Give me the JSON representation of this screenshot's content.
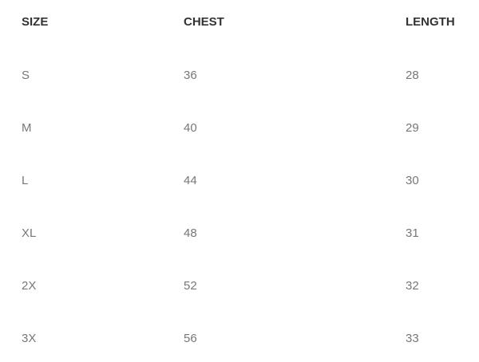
{
  "table": {
    "headers": [
      "SIZE",
      "CHEST",
      "LENGTH"
    ],
    "rows": [
      [
        "S",
        "36",
        "28"
      ],
      [
        "M",
        "40",
        "29"
      ],
      [
        "L",
        "44",
        "30"
      ],
      [
        "XL",
        "48",
        "31"
      ],
      [
        "2X",
        "52",
        "32"
      ],
      [
        "3X",
        "56",
        "33"
      ]
    ]
  }
}
